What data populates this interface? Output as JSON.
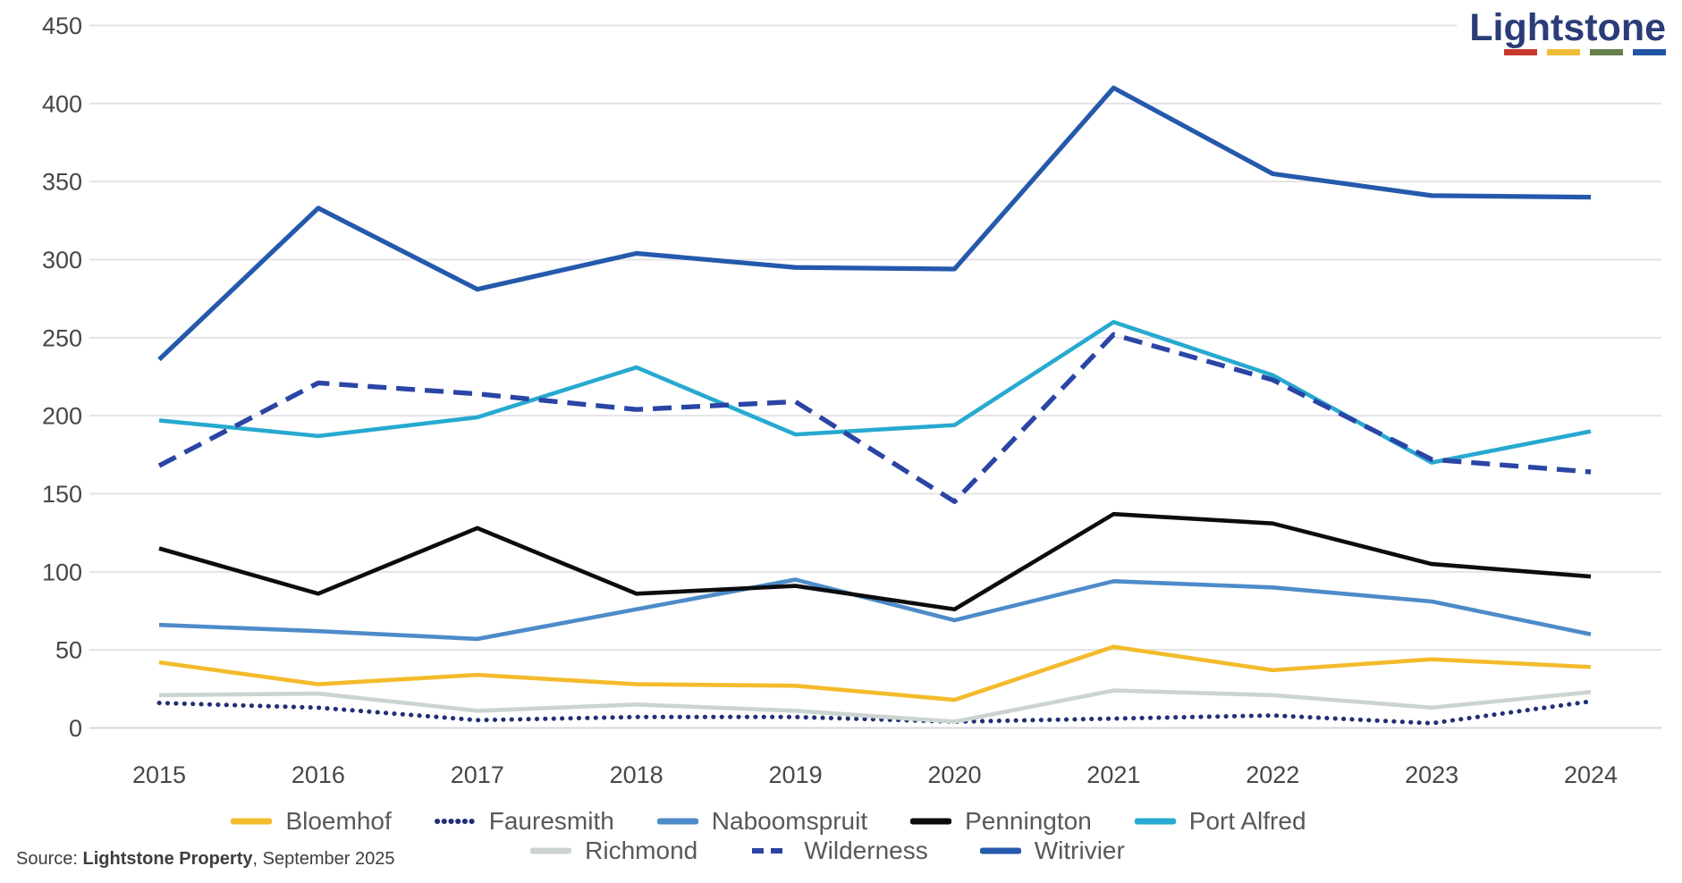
{
  "logo": {
    "text": "Lightstone",
    "underline_colors": [
      "#c6392b",
      "#f0bb39",
      "#66804b",
      "#2156a5"
    ]
  },
  "source": {
    "prefix": "Source: ",
    "bold": "Lightstone Property",
    "suffix": ", September 2025"
  },
  "axes": {
    "y_ticks": [
      "450",
      "400",
      "350",
      "300",
      "250",
      "200",
      "150",
      "100",
      "50",
      "0"
    ],
    "x_ticks": [
      "2015",
      "2016",
      "2017",
      "2018",
      "2019",
      "2020",
      "2021",
      "2022",
      "2023",
      "2024"
    ]
  },
  "legend_rows": [
    [
      0,
      1,
      2,
      3,
      4
    ],
    [
      5,
      6,
      7
    ]
  ],
  "colors": {
    "gridline": "#e3e3e7",
    "baseline": "#d8d8dc",
    "tick_text": "#47474b",
    "legend_text": "#57585c",
    "logo_navy": "#2b3c77"
  },
  "chart_data": {
    "type": "line",
    "title": "",
    "xlabel": "",
    "ylabel": "",
    "ylim": [
      0,
      450
    ],
    "ytick_step": 50,
    "grid": true,
    "legend_position": "bottom",
    "categories": [
      2015,
      2016,
      2017,
      2018,
      2019,
      2020,
      2021,
      2022,
      2023,
      2024
    ],
    "series": [
      {
        "name": "Bloemhof",
        "color": "#f3bb2b",
        "style": "solid",
        "values": [
          42,
          28,
          34,
          28,
          27,
          18,
          52,
          37,
          44,
          39
        ]
      },
      {
        "name": "Fauresmith",
        "color": "#222f76",
        "style": "dotted",
        "values": [
          16,
          13,
          5,
          7,
          7,
          4,
          6,
          8,
          3,
          17
        ]
      },
      {
        "name": "Naboomspruit",
        "color": "#4d8bc9",
        "style": "solid",
        "values": [
          66,
          62,
          57,
          76,
          95,
          69,
          94,
          90,
          81,
          60
        ]
      },
      {
        "name": "Pennington",
        "color": "#0c0c0e",
        "style": "solid",
        "values": [
          115,
          86,
          128,
          86,
          91,
          76,
          137,
          131,
          105,
          97
        ]
      },
      {
        "name": "Port Alfred",
        "color": "#27a9d0",
        "style": "solid",
        "values": [
          197,
          187,
          199,
          231,
          188,
          194,
          260,
          226,
          170,
          190
        ]
      },
      {
        "name": "Richmond",
        "color": "#ccd4cf",
        "style": "solid",
        "values": [
          21,
          22,
          11,
          15,
          11,
          4,
          24,
          21,
          13,
          23
        ]
      },
      {
        "name": "Wilderness",
        "color": "#2a45a5",
        "style": "dashed",
        "values": [
          168,
          221,
          214,
          204,
          209,
          145,
          252,
          223,
          172,
          164
        ]
      },
      {
        "name": "Witrivier",
        "color": "#2459ac",
        "style": "solid",
        "values": [
          236,
          333,
          281,
          304,
          295,
          294,
          410,
          355,
          341,
          340
        ]
      }
    ]
  }
}
